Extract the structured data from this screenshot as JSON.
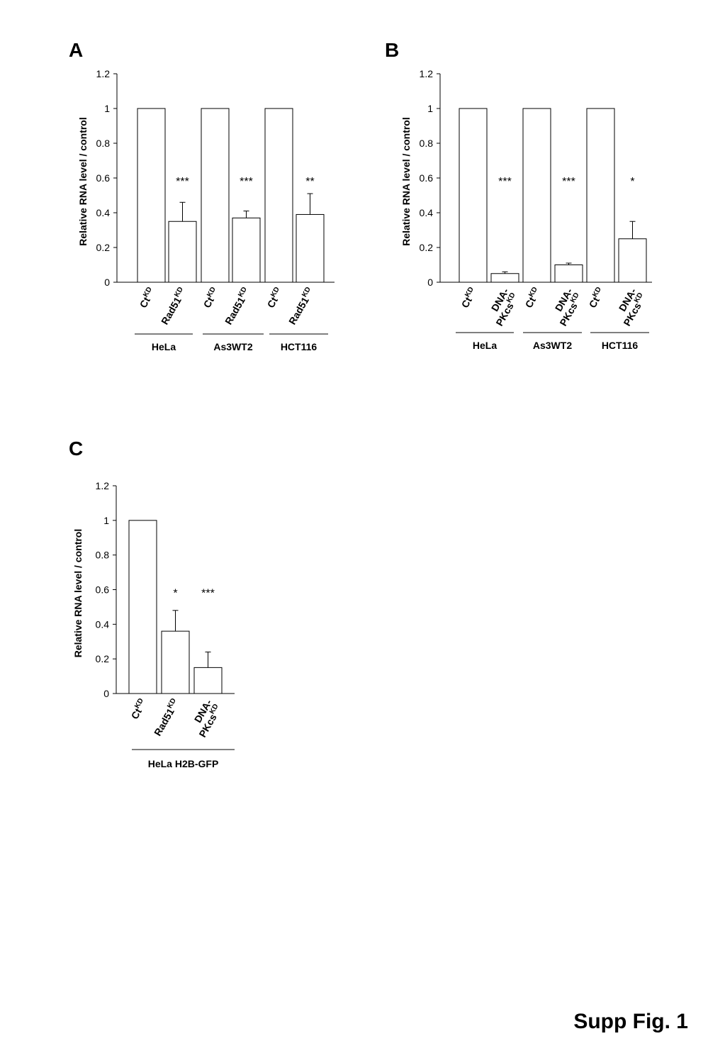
{
  "figure_label": "Supp Fig. 1",
  "chart_data": [
    {
      "panel": "A",
      "type": "bar",
      "ylabel": "Relative RNA level / control",
      "ylim": [
        0,
        1.2
      ],
      "yticks": [
        0,
        0.2,
        0.4,
        0.6,
        0.8,
        1,
        1.2
      ],
      "ytick_labels": [
        "0",
        "0.2",
        "0.4",
        "0.6",
        "0.8",
        "1",
        "1.2"
      ],
      "bars": [
        {
          "label": "Ct",
          "sup": "KD",
          "value": 1.0,
          "error": 0.0,
          "sig": ""
        },
        {
          "label": "Rad51",
          "sup": "KD",
          "value": 0.35,
          "error": 0.11,
          "sig": "***"
        },
        {
          "label": "Ct",
          "sup": "KD",
          "value": 1.0,
          "error": 0.0,
          "sig": ""
        },
        {
          "label": "Rad51",
          "sup": "KD",
          "value": 0.37,
          "error": 0.04,
          "sig": "***"
        },
        {
          "label": "Ct",
          "sup": "KD",
          "value": 1.0,
          "error": 0.0,
          "sig": ""
        },
        {
          "label": "Rad51",
          "sup": "KD",
          "value": 0.39,
          "error": 0.12,
          "sig": "**"
        }
      ],
      "groups": [
        {
          "name": "HeLa",
          "bars": [
            0,
            1
          ]
        },
        {
          "name": "As3WT2",
          "bars": [
            2,
            3
          ]
        },
        {
          "name": "HCT116",
          "bars": [
            4,
            5
          ]
        }
      ]
    },
    {
      "panel": "B",
      "type": "bar",
      "ylabel": "Relative RNA level / control",
      "ylim": [
        0,
        1.2
      ],
      "yticks": [
        0,
        0.2,
        0.4,
        0.6,
        0.8,
        1,
        1.2
      ],
      "ytick_labels": [
        "0",
        "0.2",
        "0.4",
        "0.6",
        "0.8",
        "1",
        "1.2"
      ],
      "bars": [
        {
          "label": "Ct",
          "sup": "KD",
          "value": 1.0,
          "error": 0.0,
          "sig": ""
        },
        {
          "label": "DNA-",
          "label2": "PKcs",
          "sup": "KD",
          "value": 0.05,
          "error": 0.01,
          "sig": "***"
        },
        {
          "label": "Ct",
          "sup": "KD",
          "value": 1.0,
          "error": 0.0,
          "sig": ""
        },
        {
          "label": "DNA-",
          "label2": "PKcs",
          "sup": "KD",
          "value": 0.1,
          "error": 0.01,
          "sig": "***"
        },
        {
          "label": "Ct",
          "sup": "KD",
          "value": 1.0,
          "error": 0.0,
          "sig": ""
        },
        {
          "label": "DNA-",
          "label2": "PKcs",
          "sup": "KD",
          "value": 0.25,
          "error": 0.1,
          "sig": "*"
        }
      ],
      "groups": [
        {
          "name": "HeLa",
          "bars": [
            0,
            1
          ]
        },
        {
          "name": "As3WT2",
          "bars": [
            2,
            3
          ]
        },
        {
          "name": "HCT116",
          "bars": [
            4,
            5
          ]
        }
      ]
    },
    {
      "panel": "C",
      "type": "bar",
      "ylabel": "Relative RNA level / control",
      "ylim": [
        0,
        1.2
      ],
      "yticks": [
        0,
        0.2,
        0.4,
        0.6,
        0.8,
        1,
        1.2
      ],
      "ytick_labels": [
        "0",
        "0.2",
        "0.4",
        "0.6",
        "0.8",
        "1",
        "1.2"
      ],
      "bars": [
        {
          "label": "Ct",
          "sup": "KD",
          "value": 1.0,
          "error": 0.0,
          "sig": ""
        },
        {
          "label": "Rad51",
          "sup": "KD",
          "value": 0.36,
          "error": 0.12,
          "sig": "*"
        },
        {
          "label": "DNA-",
          "label2": "PKcs",
          "sup": "KD",
          "value": 0.15,
          "error": 0.09,
          "sig": "***"
        }
      ],
      "groups": [
        {
          "name": "HeLa H2B-GFP",
          "bars": [
            0,
            1,
            2
          ]
        }
      ]
    }
  ]
}
